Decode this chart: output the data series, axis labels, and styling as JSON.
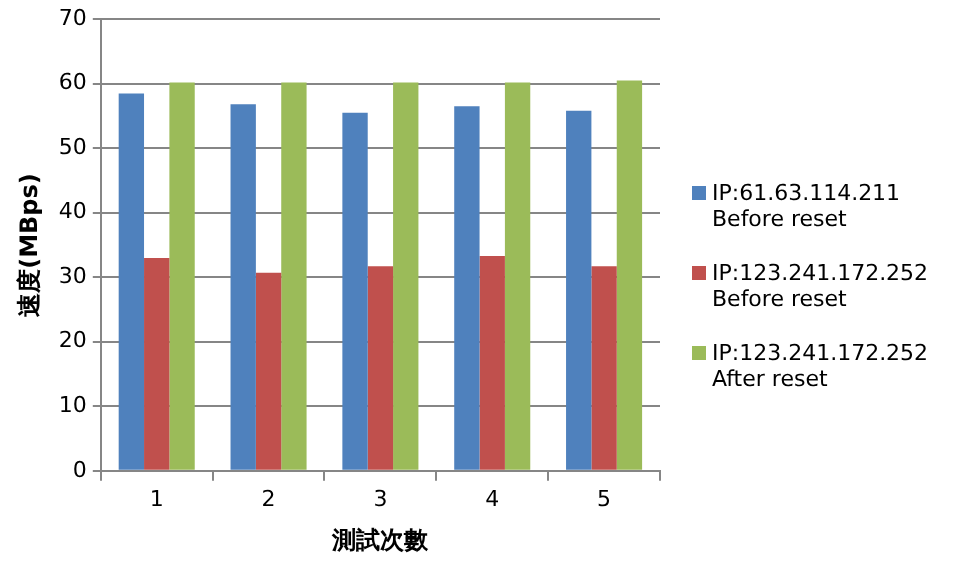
{
  "chart_data": {
    "type": "bar",
    "xlabel": "測試次數",
    "ylabel": "速度(MBps)",
    "categories": [
      "1",
      "2",
      "3",
      "4",
      "5"
    ],
    "series": [
      {
        "name": "IP:61.63.114.211 Before reset",
        "color": "#4f81bd",
        "values": [
          58.5,
          56.8,
          55.5,
          56.5,
          55.8
        ]
      },
      {
        "name": "IP:123.241.172.252 Before reset",
        "color": "#c0504d",
        "values": [
          33,
          30.7,
          31.7,
          33.3,
          31.7
        ]
      },
      {
        "name": "IP:123.241.172.252 After reset",
        "color": "#9bbb59",
        "values": [
          60.2,
          60.2,
          60.2,
          60.2,
          60.5
        ]
      }
    ],
    "ylim": [
      0,
      70
    ],
    "yticks": [
      0,
      10,
      20,
      30,
      40,
      50,
      60,
      70
    ],
    "grid": "y",
    "legend": "right"
  }
}
